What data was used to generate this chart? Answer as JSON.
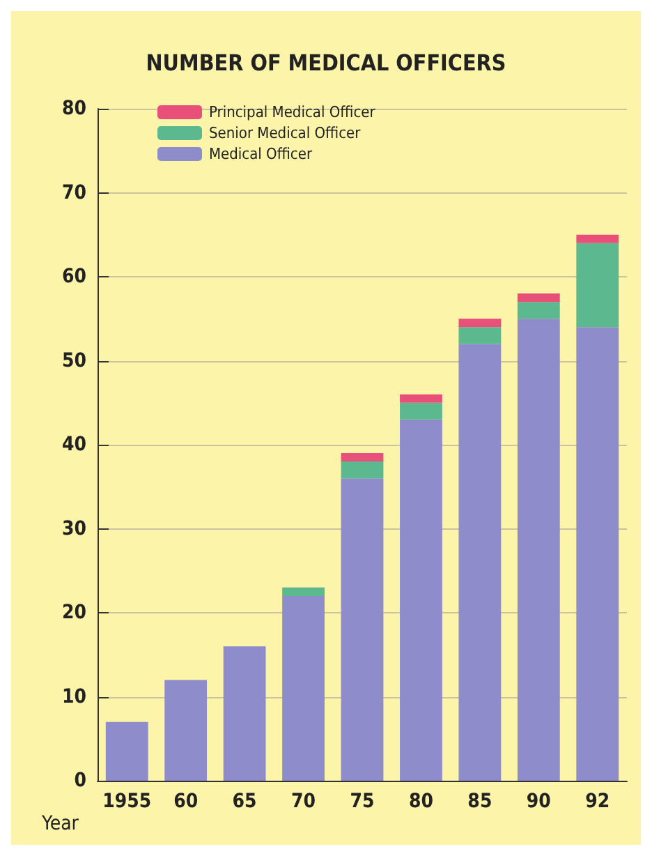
{
  "chart_data": {
    "type": "bar",
    "title": "NUMBER OF MEDICAL OFFICERS",
    "xlabel": "Year",
    "categories": [
      "1955",
      "60",
      "65",
      "70",
      "75",
      "80",
      "85",
      "90",
      "92"
    ],
    "stacked": true,
    "series": [
      {
        "name": "Medical Officer",
        "color": "#8e8ccb",
        "values": [
          7,
          12,
          16,
          22,
          36,
          43,
          52,
          55,
          54
        ]
      },
      {
        "name": "Senior Medical Officer",
        "color": "#5cb88f",
        "values": [
          0,
          0,
          0,
          1,
          2,
          2,
          2,
          2,
          10
        ]
      },
      {
        "name": "Principal Medical Officer",
        "color": "#e8507a",
        "values": [
          0,
          0,
          0,
          0,
          1,
          1,
          1,
          1,
          1
        ]
      }
    ],
    "ylim": [
      0,
      80
    ],
    "yticks": [
      0,
      10,
      20,
      30,
      40,
      50,
      60,
      70,
      80
    ],
    "grid": "y",
    "legend": "top left"
  }
}
